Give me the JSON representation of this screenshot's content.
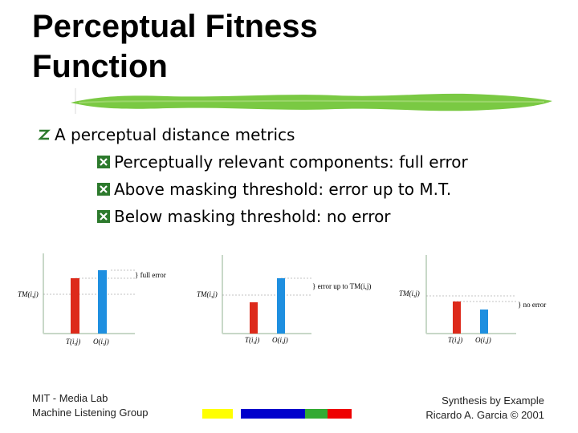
{
  "title": {
    "line1": "Perceptual Fitness",
    "line2": "Function"
  },
  "bullets": {
    "main": "A perceptual distance metrics",
    "sub": [
      "Perceptually relevant components: full error",
      "Above masking threshold: error up to M.T.",
      "Below masking threshold: no error"
    ]
  },
  "graphs": [
    {
      "threshold_label": "TM(i,j)",
      "target_label": "T(i,j)",
      "output_label": "O(i,j)",
      "error_note": "} full error"
    },
    {
      "threshold_label": "TM(i,j)",
      "target_label": "T(i,j)",
      "output_label": "O(i,j)",
      "error_note": "} error up to TM(i,j)"
    },
    {
      "threshold_label": "TM(i,j)",
      "target_label": "T(i,j)",
      "output_label": "O(i,j)",
      "error_note": "} no error"
    }
  ],
  "footer": {
    "left_line1": "MIT - Media Lab",
    "left_line2": "Machine Listening Group",
    "right_line1": "Synthesis by Example",
    "right_line2": "Ricardo A. Garcia © 2001"
  },
  "colors": {
    "target_bar": "#dd2a1b",
    "output_bar": "#1e8fe0",
    "brush": "#7ac943",
    "bullet_mark": "#2d7a2d",
    "strip_yellow": "#ffff00",
    "strip_blue": "#0000cc",
    "strip_green": "#33aa33",
    "strip_red": "#ee0000"
  }
}
